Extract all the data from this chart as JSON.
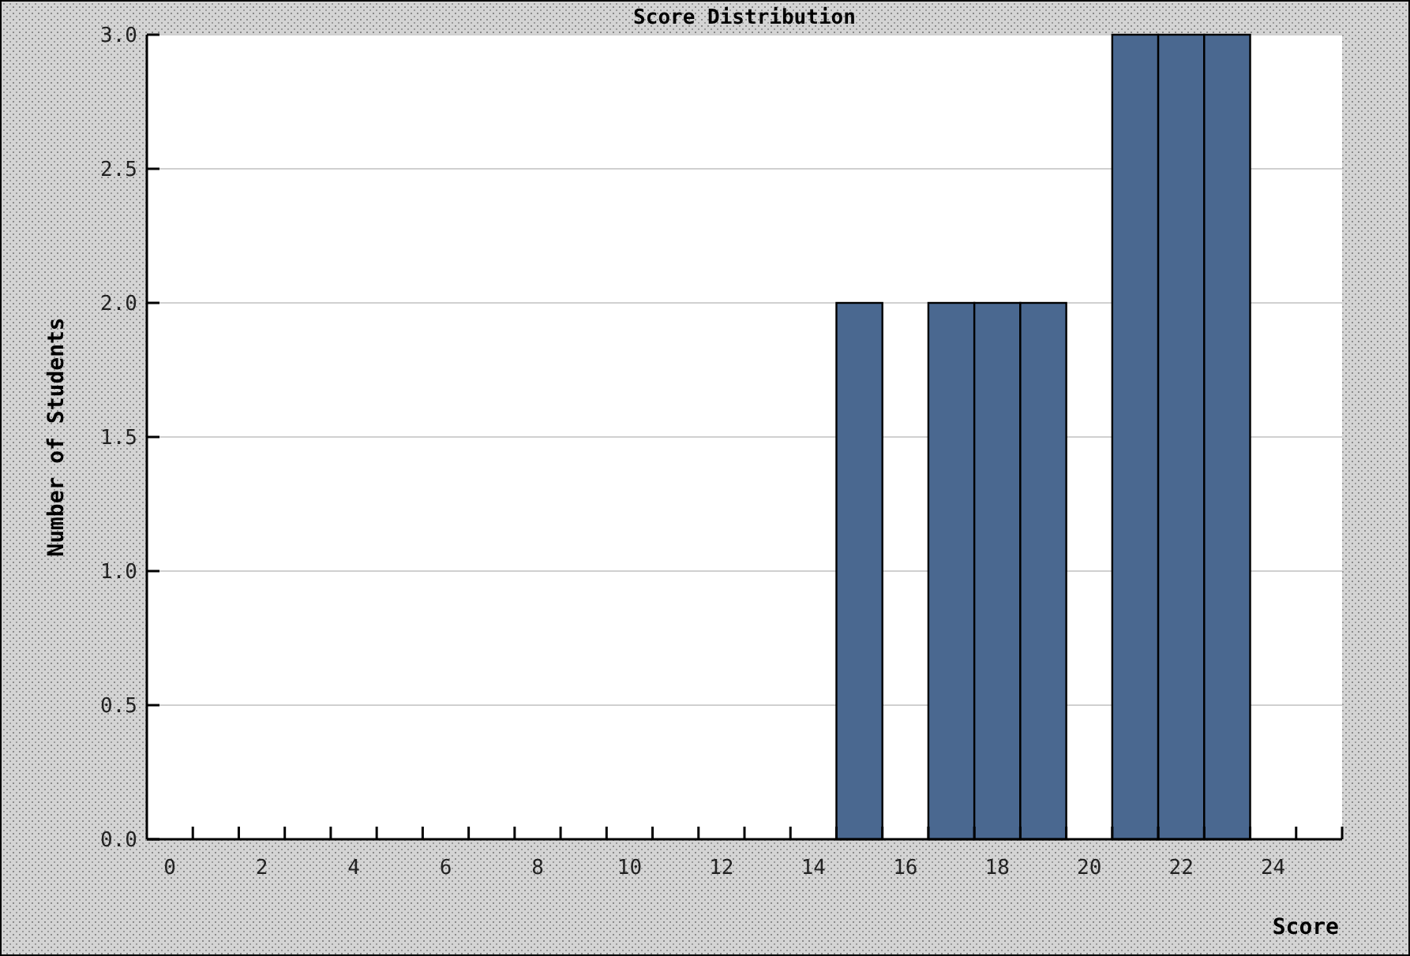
{
  "chart_data": {
    "type": "histogram",
    "title": "Score Distribution",
    "xlabel": "Score",
    "ylabel": "Number of Students",
    "bins": [
      14.5,
      15.5,
      16.5,
      17.5,
      18.5,
      19.5,
      20.5,
      21.5,
      22.5,
      23.5
    ],
    "values": [
      2,
      0,
      2,
      2,
      2,
      0,
      3,
      3,
      3
    ],
    "color": "#4a6890",
    "xlim": [
      -0.5,
      25.5
    ],
    "xticks": [
      0,
      2,
      4,
      6,
      8,
      10,
      12,
      14,
      16,
      18,
      20,
      22,
      24,
      {
        "value": 0.5,
        "label": null
      },
      {
        "value": 1.5,
        "label": null
      },
      {
        "value": 2.5,
        "label": null
      },
      {
        "value": 3.5,
        "label": null
      },
      {
        "value": 4.5,
        "label": null
      },
      {
        "value": 5.5,
        "label": null
      },
      {
        "value": 6.5,
        "label": null
      },
      {
        "value": 7.5,
        "label": null
      },
      {
        "value": 8.5,
        "label": null
      },
      {
        "value": 9.5,
        "label": null
      },
      {
        "value": 10.5,
        "label": null
      },
      {
        "value": 11.5,
        "label": null
      },
      {
        "value": 12.5,
        "label": null
      },
      {
        "value": 13.5,
        "label": null
      },
      {
        "value": 14.5,
        "label": null
      },
      {
        "value": 15.5,
        "label": null
      },
      {
        "value": 16.5,
        "label": null
      },
      {
        "value": 17.5,
        "label": null
      },
      {
        "value": 18.5,
        "label": null
      },
      {
        "value": 19.5,
        "label": null
      },
      {
        "value": 20.5,
        "label": null
      },
      {
        "value": 21.5,
        "label": null
      },
      {
        "value": 22.5,
        "label": null
      },
      {
        "value": 23.5,
        "label": null
      },
      {
        "value": 24.5,
        "label": null
      }
    ],
    "ylim": [
      0,
      3
    ],
    "yticks": [
      {
        "value": 0,
        "label": "0.0"
      },
      {
        "value": 0.5,
        "label": "0.5"
      },
      {
        "value": 1,
        "label": "1.0"
      },
      {
        "value": 1.5,
        "label": "1.5"
      },
      {
        "value": 2,
        "label": "2.0"
      },
      {
        "value": 2.5,
        "label": "2.5"
      },
      {
        "value": 3,
        "label": "3.0"
      }
    ],
    "grid": "y"
  }
}
